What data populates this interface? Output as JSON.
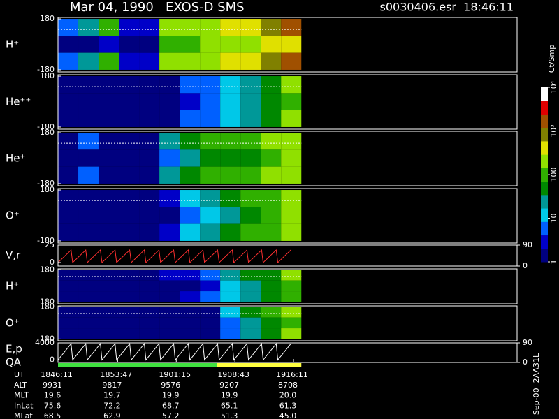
{
  "chart_data": {
    "type": "spectrogram",
    "title": "Mar 04, 1990   EXOS-D SMS",
    "file_label": "s0030406.esr  18:46:11",
    "side_label": "Sep-00  2AA31L",
    "xlim": [
      67571,
      71080
    ],
    "xticks": [
      {
        "value": 67571,
        "label": "1846:11"
      },
      {
        "value": 68027,
        "label": "1853:47"
      },
      {
        "value": 68475,
        "label": "1901:15"
      },
      {
        "value": 68923,
        "label": "1908:43"
      },
      {
        "value": 69371,
        "label": "1916:11"
      }
    ],
    "x_label": "UT",
    "time_edges": [
      67571,
      67726,
      67881,
      68036,
      68191,
      68346,
      68501,
      68656,
      68811,
      68966,
      69121,
      69276,
      69431
    ],
    "pitch_edges": [
      180,
      60,
      -60,
      -180
    ],
    "colorbar": {
      "title": "Ct/Smp",
      "log": true,
      "zlim": [
        1,
        10000
      ],
      "zticks": [
        1,
        10,
        100,
        {
          "value": 1000,
          "label": "10³"
        },
        {
          "value": 10000,
          "label": "10⁴"
        }
      ],
      "colors": [
        "#000080",
        "#0000c8",
        "#0060ff",
        "#00c8e8",
        "#009898",
        "#008800",
        "#30b000",
        "#90e000",
        "#e0e000",
        "#808000",
        "#a05000",
        "#e00000",
        "#ffffff"
      ]
    },
    "panels": [
      {
        "type": "heatmap",
        "label": "H⁺",
        "ylim": [
          -195,
          190
        ],
        "yticks": [
          180,
          -180
        ],
        "values": [
          [
            5,
            2,
            5
          ],
          [
            20,
            2,
            20
          ],
          [
            100,
            3,
            100
          ],
          [
            3,
            2,
            3
          ],
          [
            3,
            2,
            3
          ],
          [
            150,
            80,
            150
          ],
          [
            200,
            120,
            200
          ],
          [
            250,
            150,
            250
          ],
          [
            300,
            150,
            300
          ],
          [
            500,
            200,
            500
          ],
          [
            800,
            300,
            800
          ],
          [
            1500,
            500,
            1500
          ]
        ]
      },
      {
        "type": "heatmap",
        "label": "He⁺⁺",
        "ylim": [
          -195,
          190
        ],
        "yticks": [
          180,
          -180
        ],
        "values": [
          [
            1,
            1,
            1
          ],
          [
            1,
            1,
            1
          ],
          [
            1,
            1,
            1
          ],
          [
            1,
            1,
            1
          ],
          [
            1,
            1,
            1
          ],
          [
            2,
            2,
            2
          ],
          [
            5,
            4,
            5
          ],
          [
            8,
            6,
            8
          ],
          [
            15,
            10,
            15
          ],
          [
            30,
            20,
            30
          ],
          [
            60,
            40,
            60
          ],
          [
            150,
            100,
            150
          ]
        ]
      },
      {
        "type": "heatmap",
        "label": "He⁺",
        "ylim": [
          -195,
          190
        ],
        "yticks": [
          180,
          -180
        ],
        "values": [
          [
            2,
            1,
            1
          ],
          [
            5,
            1,
            5
          ],
          [
            2,
            1,
            2
          ],
          [
            1,
            1,
            1
          ],
          [
            1,
            1,
            1
          ],
          [
            20,
            8,
            20
          ],
          [
            60,
            30,
            60
          ],
          [
            80,
            50,
            80
          ],
          [
            100,
            60,
            100
          ],
          [
            120,
            70,
            120
          ],
          [
            150,
            80,
            150
          ],
          [
            250,
            150,
            250
          ]
        ]
      },
      {
        "type": "heatmap",
        "label": "O⁺",
        "ylim": [
          -195,
          190
        ],
        "yticks": [
          180,
          -180
        ],
        "values": [
          [
            1,
            1,
            1
          ],
          [
            1,
            1,
            1
          ],
          [
            1,
            1,
            1
          ],
          [
            1,
            1,
            1
          ],
          [
            1,
            1,
            1
          ],
          [
            3,
            2,
            3
          ],
          [
            15,
            8,
            15
          ],
          [
            30,
            15,
            30
          ],
          [
            50,
            30,
            50
          ],
          [
            80,
            50,
            80
          ],
          [
            120,
            80,
            120
          ],
          [
            250,
            150,
            250
          ]
        ]
      },
      {
        "type": "line",
        "label": "V,r",
        "ylim": [
          -5,
          25
        ],
        "yticks": [
          25,
          0
        ],
        "y2lim": [
          0,
          90
        ],
        "y2ticks": [
          90,
          0
        ],
        "color": "#ff3030",
        "x": [
          67571,
          67671,
          67683,
          67783,
          67795,
          67895,
          67907,
          68007,
          68019,
          68119,
          68131,
          68231,
          68243,
          68343,
          68355,
          68455,
          68467,
          68567,
          68579,
          68679,
          68691,
          68791,
          68803,
          68903,
          68915,
          69015,
          69027,
          69127,
          69139,
          69239,
          69251,
          69351
        ],
        "values": [
          0,
          18,
          0,
          18,
          0,
          18,
          0,
          18,
          0,
          18,
          0,
          18,
          0,
          18,
          0,
          18,
          0,
          18,
          0,
          18,
          0,
          18,
          0,
          18,
          0,
          18,
          0,
          18,
          0,
          18,
          0,
          18
        ]
      },
      {
        "type": "heatmap",
        "label": "H⁺",
        "ylim": [
          -200,
          190
        ],
        "yticks": [
          180,
          -180
        ],
        "values": [
          [
            2,
            1,
            1
          ],
          [
            2,
            1,
            1
          ],
          [
            2,
            1,
            1
          ],
          [
            2,
            1,
            1
          ],
          [
            2,
            1,
            1
          ],
          [
            3,
            2,
            2
          ],
          [
            4,
            2,
            3
          ],
          [
            8,
            4,
            6
          ],
          [
            20,
            10,
            15
          ],
          [
            40,
            25,
            30
          ],
          [
            70,
            40,
            60
          ],
          [
            150,
            80,
            120
          ]
        ]
      },
      {
        "type": "heatmap",
        "label": "O⁺",
        "ylim": [
          -200,
          190
        ],
        "yticks": [
          180,
          -180
        ],
        "values": [
          [
            1,
            1,
            1
          ],
          [
            1,
            1,
            1
          ],
          [
            1,
            1,
            1
          ],
          [
            1,
            1,
            1
          ],
          [
            1,
            1,
            1
          ],
          [
            1,
            1,
            1
          ],
          [
            1,
            1,
            1
          ],
          [
            2,
            1,
            1
          ],
          [
            10,
            5,
            8
          ],
          [
            40,
            20,
            30
          ],
          [
            80,
            50,
            70
          ],
          [
            200,
            100,
            150
          ]
        ]
      },
      {
        "type": "line",
        "label": "E,p",
        "ylim": [
          -600,
          4000
        ],
        "yticks": [
          4000,
          0
        ],
        "y2lim": [
          0,
          90
        ],
        "y2ticks": [
          90,
          0
        ],
        "color": "#ffffff",
        "x": [
          67571,
          67671,
          67683,
          67783,
          67795,
          67895,
          67907,
          68007,
          68019,
          68119,
          68131,
          68231,
          68243,
          68343,
          68355,
          68455,
          68467,
          68567,
          68579,
          68679,
          68691,
          68791,
          68803,
          68903,
          68915,
          69015,
          69027,
          69127,
          69139,
          69239,
          69251,
          69351
        ],
        "values": [
          0,
          3800,
          0,
          3800,
          0,
          3800,
          0,
          3800,
          0,
          3800,
          0,
          3800,
          0,
          3800,
          0,
          3800,
          0,
          3800,
          0,
          3800,
          0,
          3800,
          0,
          3800,
          0,
          3800,
          0,
          3800,
          0,
          3800,
          0,
          3800
        ]
      }
    ],
    "qa": {
      "label": "QA",
      "x": [
        67571,
        68784,
        69431
      ],
      "colors": [
        "#40e040",
        "#ffff40"
      ]
    },
    "ephemeris": [
      {
        "name": "ALT",
        "values": [
          "9931",
          "9817",
          "9576",
          "9207",
          "8708"
        ]
      },
      {
        "name": "MLT",
        "values": [
          "19.6",
          "19.7",
          "19.9",
          "19.9",
          "20.0"
        ]
      },
      {
        "name": "InLat",
        "values": [
          "75.6",
          "72.2",
          "68.7",
          "65.1",
          "61.3"
        ]
      },
      {
        "name": "MLat",
        "values": [
          "68.5",
          "62.9",
          "57.2",
          "51.3",
          "45.0"
        ]
      }
    ]
  }
}
